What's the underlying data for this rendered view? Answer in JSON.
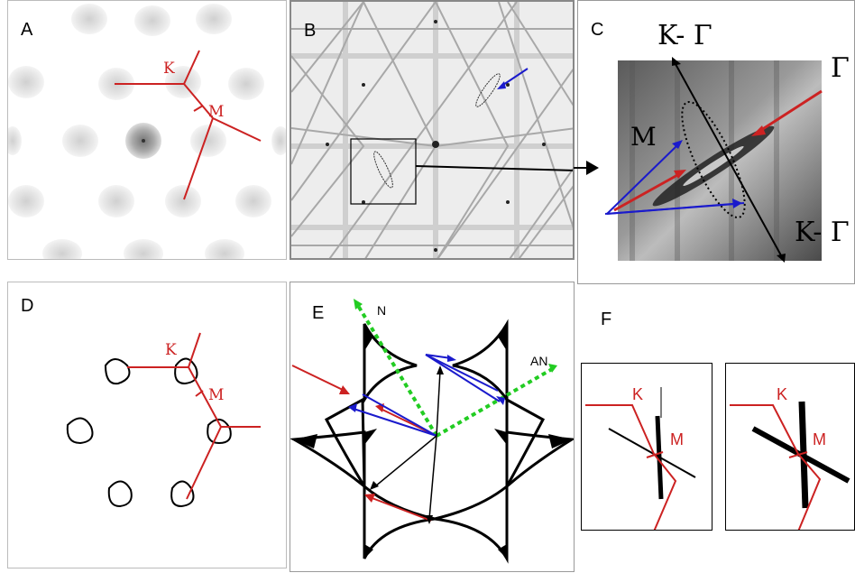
{
  "panels": {
    "a": {
      "label": "A",
      "k": "K",
      "m": "M"
    },
    "b": {
      "label": "B"
    },
    "c": {
      "label": "C",
      "k_gamma_top": "K- Γ",
      "k_gamma_bottom": "K- Γ",
      "gamma": "Γ",
      "m": "M"
    },
    "d": {
      "label": "D",
      "k": "K",
      "m": "M"
    },
    "e": {
      "label": "E",
      "n": "N",
      "an": "AN"
    },
    "f": {
      "label": "F",
      "k_left": "K",
      "m_left": "M",
      "k_right": "K",
      "m_right": "M"
    }
  },
  "colors": {
    "red": "#cc2222",
    "blue": "#1a1acc",
    "green": "#22cc22",
    "black": "#000000"
  }
}
